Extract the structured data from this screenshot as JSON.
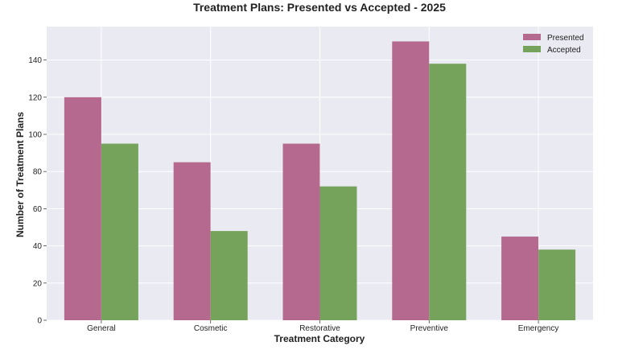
{
  "chart_data": {
    "type": "bar",
    "title": "Treatment Plans: Presented vs Accepted - 2025",
    "xlabel": "Treatment Category",
    "ylabel": "Number of Treatment Plans",
    "categories": [
      "General",
      "Cosmetic",
      "Restorative",
      "Preventive",
      "Emergency"
    ],
    "series": [
      {
        "name": "Presented",
        "values": [
          120,
          85,
          95,
          150,
          45
        ],
        "color": "#b5698f"
      },
      {
        "name": "Accepted",
        "values": [
          95,
          48,
          72,
          138,
          38
        ],
        "color": "#75a35c"
      }
    ],
    "ylim": [
      0,
      158
    ],
    "yticks": [
      0,
      20,
      40,
      60,
      80,
      100,
      120,
      140
    ],
    "grid": true,
    "legend_position": "top-right",
    "plot_background": "#eaeaf2",
    "grid_color": "#ffffff"
  }
}
